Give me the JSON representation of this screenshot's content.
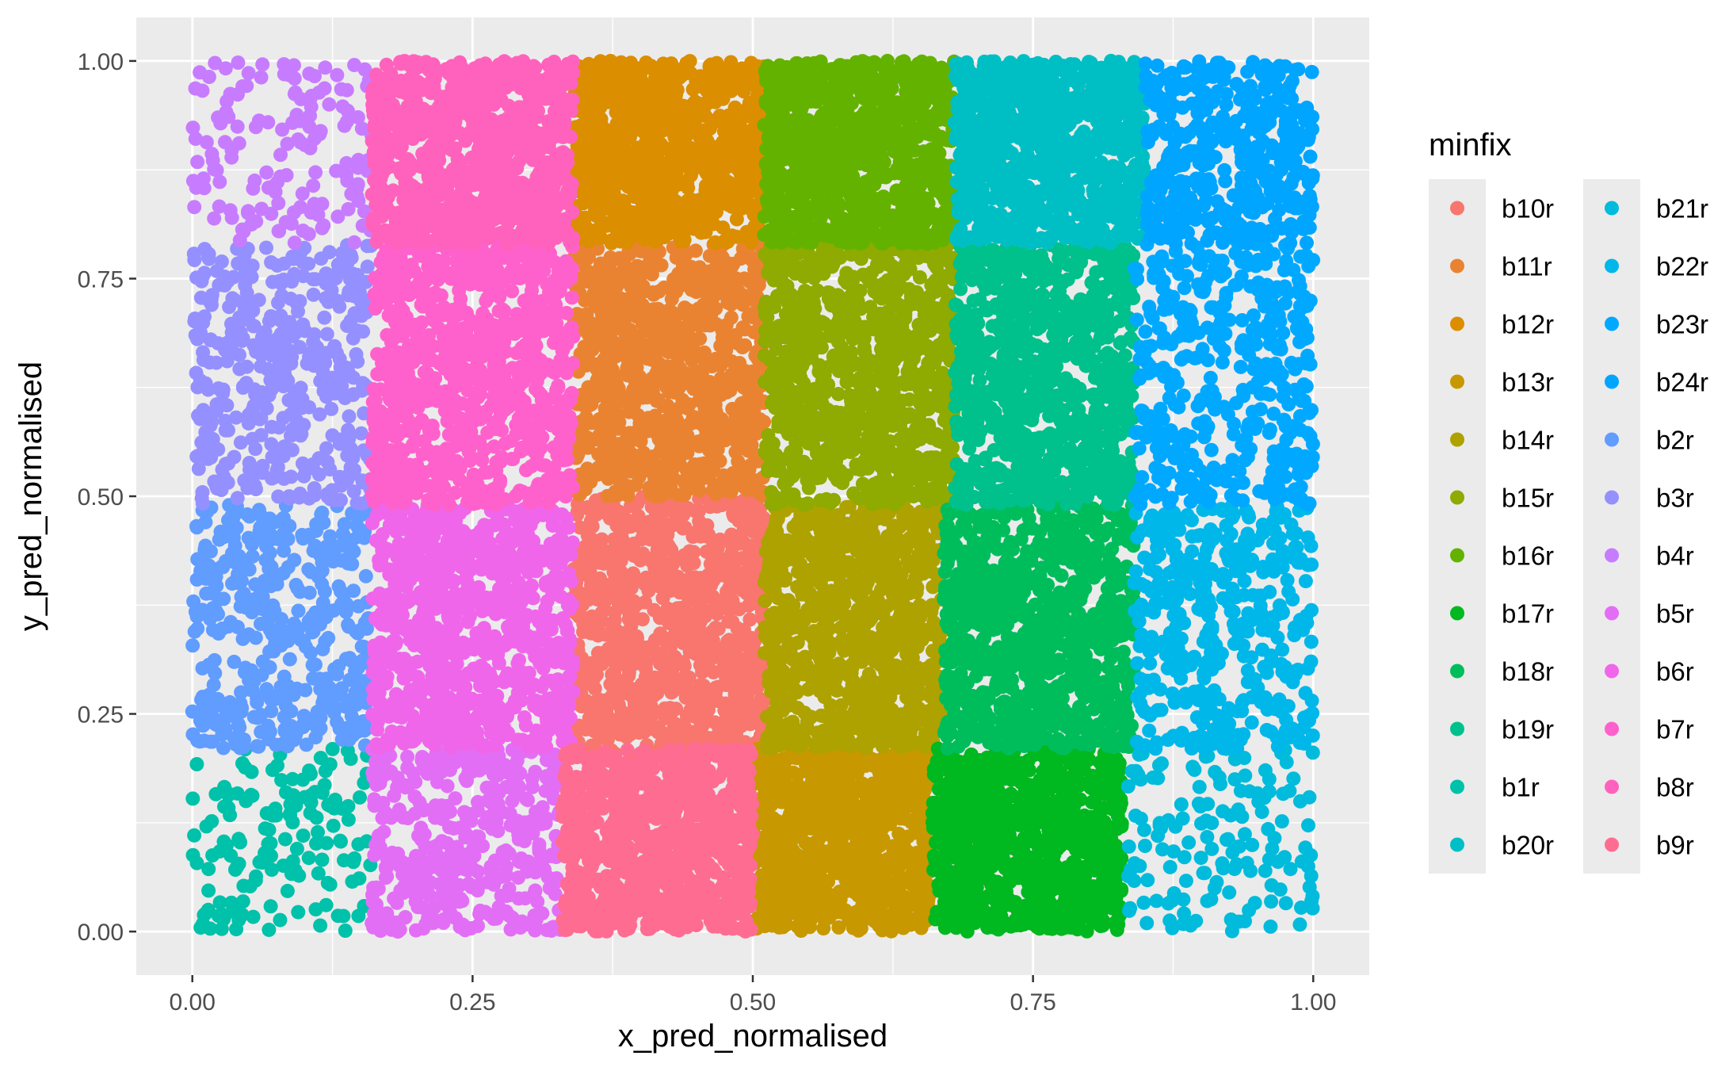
{
  "chart_data": {
    "type": "scatter",
    "title": "",
    "xlabel": "x_pred_normalised",
    "ylabel": "y_pred_normalised",
    "xlim": [
      -0.05,
      1.05
    ],
    "ylim": [
      -0.05,
      1.05
    ],
    "x_ticks": [
      "0.00",
      "0.25",
      "0.50",
      "0.75",
      "1.00"
    ],
    "y_ticks": [
      "0.00",
      "0.25",
      "0.50",
      "0.75",
      "1.00"
    ],
    "grid": true,
    "legend": {
      "title": "minfix",
      "placement": "right",
      "columns": 2
    },
    "series": [
      {
        "name": "b10r",
        "color": "#F8766D",
        "x_range": [
          0.34,
          0.51
        ],
        "y_range": [
          0.2,
          0.5
        ],
        "density": "dense"
      },
      {
        "name": "b11r",
        "color": "#EA8331",
        "x_range": [
          0.34,
          0.51
        ],
        "y_range": [
          0.5,
          0.79
        ],
        "density": "dense"
      },
      {
        "name": "b12r",
        "color": "#DB8E00",
        "x_range": [
          0.34,
          0.51
        ],
        "y_range": [
          0.79,
          1.0
        ],
        "density": "dense"
      },
      {
        "name": "b13r",
        "color": "#C79800",
        "x_range": [
          0.5,
          0.66
        ],
        "y_range": [
          0.0,
          0.21
        ],
        "density": "dense"
      },
      {
        "name": "b14r",
        "color": "#AEA200",
        "x_range": [
          0.51,
          0.67
        ],
        "y_range": [
          0.21,
          0.49
        ],
        "density": "dense"
      },
      {
        "name": "b15r",
        "color": "#8FAA00",
        "x_range": [
          0.51,
          0.68
        ],
        "y_range": [
          0.49,
          0.79
        ],
        "density": "dense"
      },
      {
        "name": "b16r",
        "color": "#64B200",
        "x_range": [
          0.51,
          0.68
        ],
        "y_range": [
          0.79,
          1.0
        ],
        "density": "dense"
      },
      {
        "name": "b17r",
        "color": "#00B81F",
        "x_range": [
          0.66,
          0.83
        ],
        "y_range": [
          0.0,
          0.21
        ],
        "density": "dense"
      },
      {
        "name": "b18r",
        "color": "#00BD5C",
        "x_range": [
          0.67,
          0.84
        ],
        "y_range": [
          0.21,
          0.49
        ],
        "density": "dense"
      },
      {
        "name": "b19r",
        "color": "#00C08B",
        "x_range": [
          0.68,
          0.84
        ],
        "y_range": [
          0.49,
          0.79
        ],
        "density": "dense"
      },
      {
        "name": "b1r",
        "color": "#00C1A9",
        "x_range": [
          0.0,
          0.16
        ],
        "y_range": [
          0.0,
          0.21
        ],
        "density": "sparse"
      },
      {
        "name": "b20r",
        "color": "#00BFC4",
        "x_range": [
          0.68,
          0.85
        ],
        "y_range": [
          0.79,
          1.0
        ],
        "density": "dense"
      },
      {
        "name": "b21r",
        "color": "#00BBDB",
        "x_range": [
          0.83,
          1.0
        ],
        "y_range": [
          0.0,
          0.21
        ],
        "density": "sparse"
      },
      {
        "name": "b22r",
        "color": "#00B7EA",
        "x_range": [
          0.84,
          1.0
        ],
        "y_range": [
          0.21,
          0.49
        ],
        "density": "medium"
      },
      {
        "name": "b23r",
        "color": "#00A9FF",
        "x_range": [
          0.84,
          1.0
        ],
        "y_range": [
          0.49,
          0.79
        ],
        "density": "medium"
      },
      {
        "name": "b24r",
        "color": "#00A5FF",
        "x_range": [
          0.85,
          1.0
        ],
        "y_range": [
          0.79,
          1.0
        ],
        "density": "medium"
      },
      {
        "name": "b2r",
        "color": "#619CFF",
        "x_range": [
          0.0,
          0.16
        ],
        "y_range": [
          0.21,
          0.49
        ],
        "density": "medium"
      },
      {
        "name": "b3r",
        "color": "#9590FF",
        "x_range": [
          0.0,
          0.16
        ],
        "y_range": [
          0.49,
          0.79
        ],
        "density": "medium"
      },
      {
        "name": "b4r",
        "color": "#C77CFF",
        "x_range": [
          0.0,
          0.16
        ],
        "y_range": [
          0.79,
          1.0
        ],
        "density": "sparse"
      },
      {
        "name": "b5r",
        "color": "#E36EF6",
        "x_range": [
          0.16,
          0.33
        ],
        "y_range": [
          0.0,
          0.21
        ],
        "density": "medium"
      },
      {
        "name": "b6r",
        "color": "#F066EA",
        "x_range": [
          0.16,
          0.34
        ],
        "y_range": [
          0.21,
          0.49
        ],
        "density": "dense"
      },
      {
        "name": "b7r",
        "color": "#FF61CC",
        "x_range": [
          0.16,
          0.34
        ],
        "y_range": [
          0.49,
          0.79
        ],
        "density": "dense"
      },
      {
        "name": "b8r",
        "color": "#FF62BC",
        "x_range": [
          0.16,
          0.34
        ],
        "y_range": [
          0.79,
          1.0
        ],
        "density": "dense"
      },
      {
        "name": "b9r",
        "color": "#FF6C91",
        "x_range": [
          0.33,
          0.5
        ],
        "y_range": [
          0.0,
          0.21
        ],
        "density": "dense"
      }
    ]
  }
}
